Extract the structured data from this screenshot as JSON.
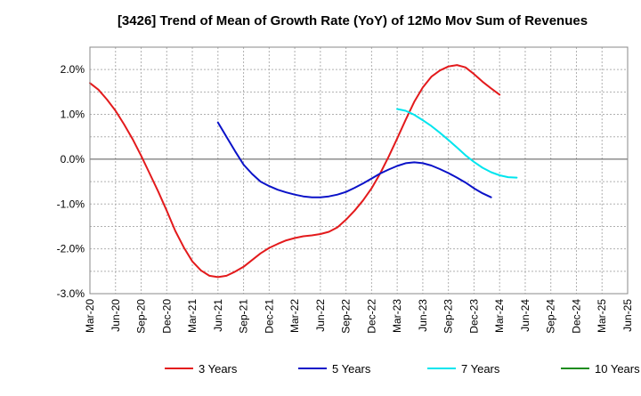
{
  "chart_data": {
    "type": "line",
    "title": "[3426]  Trend of Mean of Growth Rate (YoY) of 12Mo Mov Sum of Revenues",
    "xlabel": "",
    "ylabel": "",
    "ylim": [
      -3.0,
      2.5
    ],
    "yticks": [
      2.0,
      1.0,
      0.0,
      -1.0,
      -2.0,
      -3.0
    ],
    "ytick_labels": [
      "2.0%",
      "1.0%",
      "0.0%",
      "-1.0%",
      "-2.0%",
      "-3.0%"
    ],
    "x_start": "Mar-20",
    "x_end": "Jun-25",
    "xtick_labels": [
      "Mar-20",
      "Jun-20",
      "Sep-20",
      "Dec-20",
      "Mar-21",
      "Jun-21",
      "Sep-21",
      "Dec-21",
      "Mar-22",
      "Jun-22",
      "Sep-22",
      "Dec-22",
      "Mar-23",
      "Jun-23",
      "Sep-23",
      "Dec-23",
      "Mar-24",
      "Jun-24",
      "Sep-24",
      "Dec-24",
      "Mar-25",
      "Jun-25"
    ],
    "grid": true,
    "legend_position": "bottom",
    "series": [
      {
        "name": "3 Years",
        "color": "#e31a1c",
        "start_index": 0,
        "values": [
          1.7,
          1.55,
          1.33,
          1.08,
          0.78,
          0.45,
          0.08,
          -0.32,
          -0.72,
          -1.15,
          -1.6,
          -1.97,
          -2.28,
          -2.48,
          -2.6,
          -2.63,
          -2.6,
          -2.51,
          -2.4,
          -2.25,
          -2.1,
          -1.98,
          -1.89,
          -1.81,
          -1.76,
          -1.72,
          -1.7,
          -1.67,
          -1.62,
          -1.52,
          -1.35,
          -1.15,
          -0.92,
          -0.65,
          -0.32,
          0.06,
          0.46,
          0.88,
          1.28,
          1.6,
          1.84,
          1.98,
          2.07,
          2.1,
          2.05,
          1.9,
          1.73,
          1.58,
          1.44
        ]
      },
      {
        "name": "5 Years",
        "color": "#0a12c8",
        "start_index": 15,
        "values": [
          0.82,
          0.5,
          0.18,
          -0.12,
          -0.33,
          -0.5,
          -0.6,
          -0.68,
          -0.74,
          -0.79,
          -0.83,
          -0.85,
          -0.85,
          -0.83,
          -0.79,
          -0.73,
          -0.64,
          -0.54,
          -0.43,
          -0.32,
          -0.23,
          -0.15,
          -0.09,
          -0.07,
          -0.09,
          -0.14,
          -0.22,
          -0.31,
          -0.41,
          -0.52,
          -0.65,
          -0.76,
          -0.85
        ]
      },
      {
        "name": "7 Years",
        "color": "#00e5ee",
        "start_index": 36,
        "values": [
          1.12,
          1.08,
          0.99,
          0.87,
          0.74,
          0.59,
          0.43,
          0.26,
          0.09,
          -0.06,
          -0.19,
          -0.29,
          -0.36,
          -0.4,
          -0.41
        ]
      },
      {
        "name": "10 Years",
        "color": "#1e8c1e",
        "start_index": 0,
        "values": []
      }
    ]
  }
}
